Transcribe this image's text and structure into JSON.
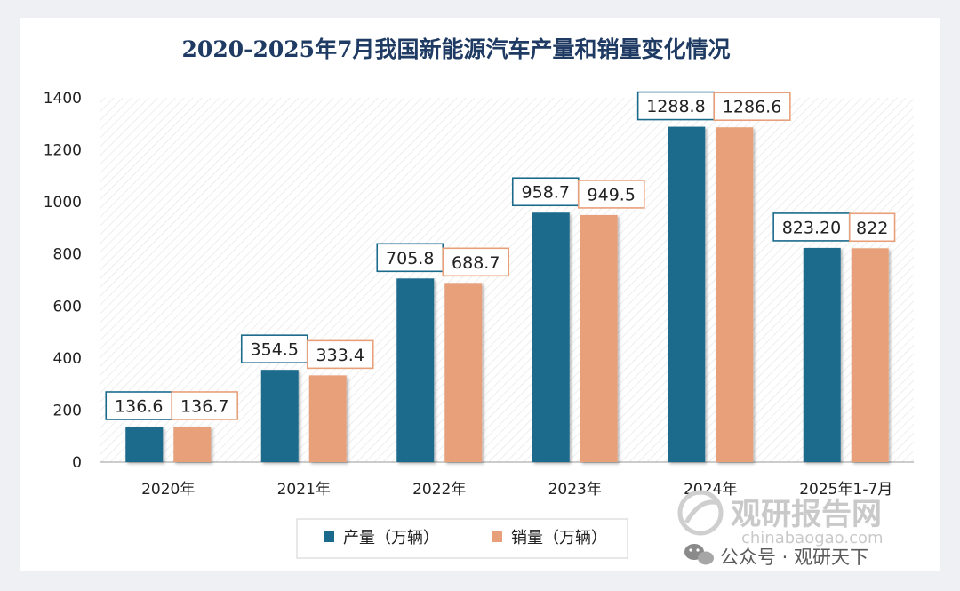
{
  "chart_data": {
    "type": "bar",
    "title": "2020-2025年7月我国新能源汽车产量和销量变化情况",
    "categories": [
      "2020年",
      "2021年",
      "2022年",
      "2023年",
      "2024年",
      "2025年1-7月"
    ],
    "series": [
      {
        "name": "产量（万辆）",
        "color": "#1b6a8c",
        "values": [
          136.6,
          354.5,
          705.8,
          958.7,
          1288.8,
          823.2
        ],
        "labels": [
          "136.6",
          "354.5",
          "705.8",
          "958.7",
          "1288.8",
          "823.20"
        ]
      },
      {
        "name": "销量（万辆）",
        "color": "#e8a07a",
        "values": [
          136.7,
          333.4,
          688.7,
          949.5,
          1286.6,
          822
        ],
        "labels": [
          "136.7",
          "333.4",
          "688.7",
          "949.5",
          "1286.6",
          "822"
        ]
      }
    ],
    "ylim": [
      0,
      1400
    ],
    "yticks": [
      0,
      200,
      400,
      600,
      800,
      1000,
      1200,
      1400
    ],
    "xlabel": "",
    "ylabel": "",
    "legend": "bottom-center"
  },
  "watermark": {
    "brand": "观研报告网",
    "site": "chinabaogao.com",
    "account": "公众号 · 观研天下"
  }
}
